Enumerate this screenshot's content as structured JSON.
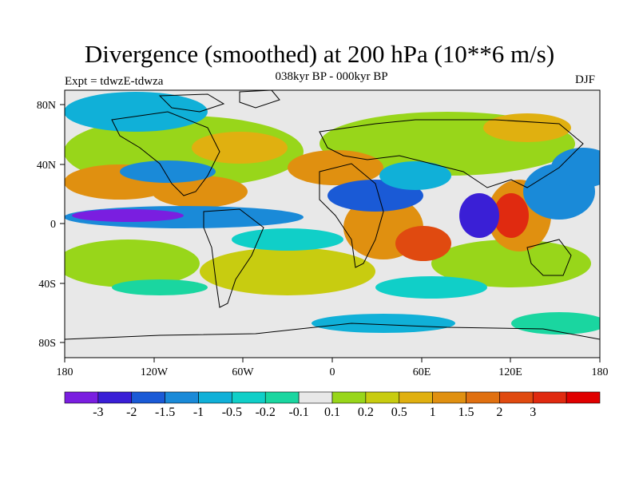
{
  "title": "Divergence (smoothed) at 200 hPa (10**6 m/s)",
  "subtitle": "038kyr BP - 000kyr BP",
  "left_label": "Expt = tdwzE-tdwza",
  "right_label": "DJF",
  "map": {
    "projection": "cylindrical equidistant",
    "lon_range": [
      -180,
      180
    ],
    "lat_range": [
      -90,
      90
    ],
    "field_name": "Divergence (smoothed)"
  },
  "axes": {
    "x_ticks": [
      "180",
      "120W",
      "60W",
      "0",
      "60E",
      "120E",
      "180"
    ],
    "y_ticks": [
      "80N",
      "40N",
      "0",
      "40S",
      "80S"
    ]
  },
  "colorbar": {
    "colors": [
      "#7a1ee0",
      "#3a1fd6",
      "#1a5ad6",
      "#1a8ad8",
      "#10b0d8",
      "#10cfc8",
      "#1ad6a0",
      "#e8e8e8",
      "#98d61a",
      "#c8cc10",
      "#e0b010",
      "#e09010",
      "#e07010",
      "#e04a10",
      "#e02a10",
      "#e00000"
    ],
    "labels": [
      "-3",
      "-2",
      "-1.5",
      "-1",
      "-0.5",
      "-0.2",
      "-0.1",
      "0.1",
      "0.2",
      "0.5",
      "1",
      "1.5",
      "2",
      "3"
    ]
  }
}
